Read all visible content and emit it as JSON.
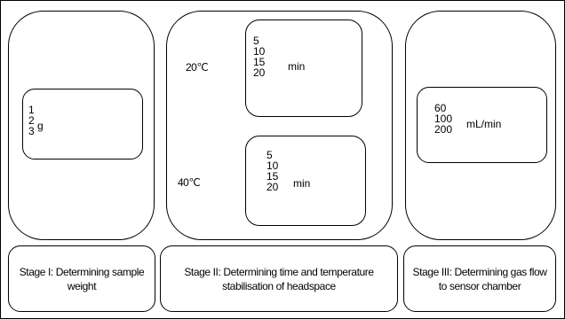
{
  "stage1": {
    "values": "1\n2\n3",
    "unit": "g",
    "caption": "Stage I: Determining sample weight"
  },
  "stage2": {
    "temp_a": "20℃",
    "times_a": "5\n10\n15\n20",
    "unit_a": "min",
    "temp_b": "40℃",
    "times_b": "5\n10\n15\n20",
    "unit_b": "min",
    "caption": "Stage II: Determining time and temperature stabilisation of headspace"
  },
  "stage3": {
    "values": "60\n100\n200",
    "unit": "mL/min",
    "caption": "Stage III: Determining gas flow to sensor chamber"
  }
}
